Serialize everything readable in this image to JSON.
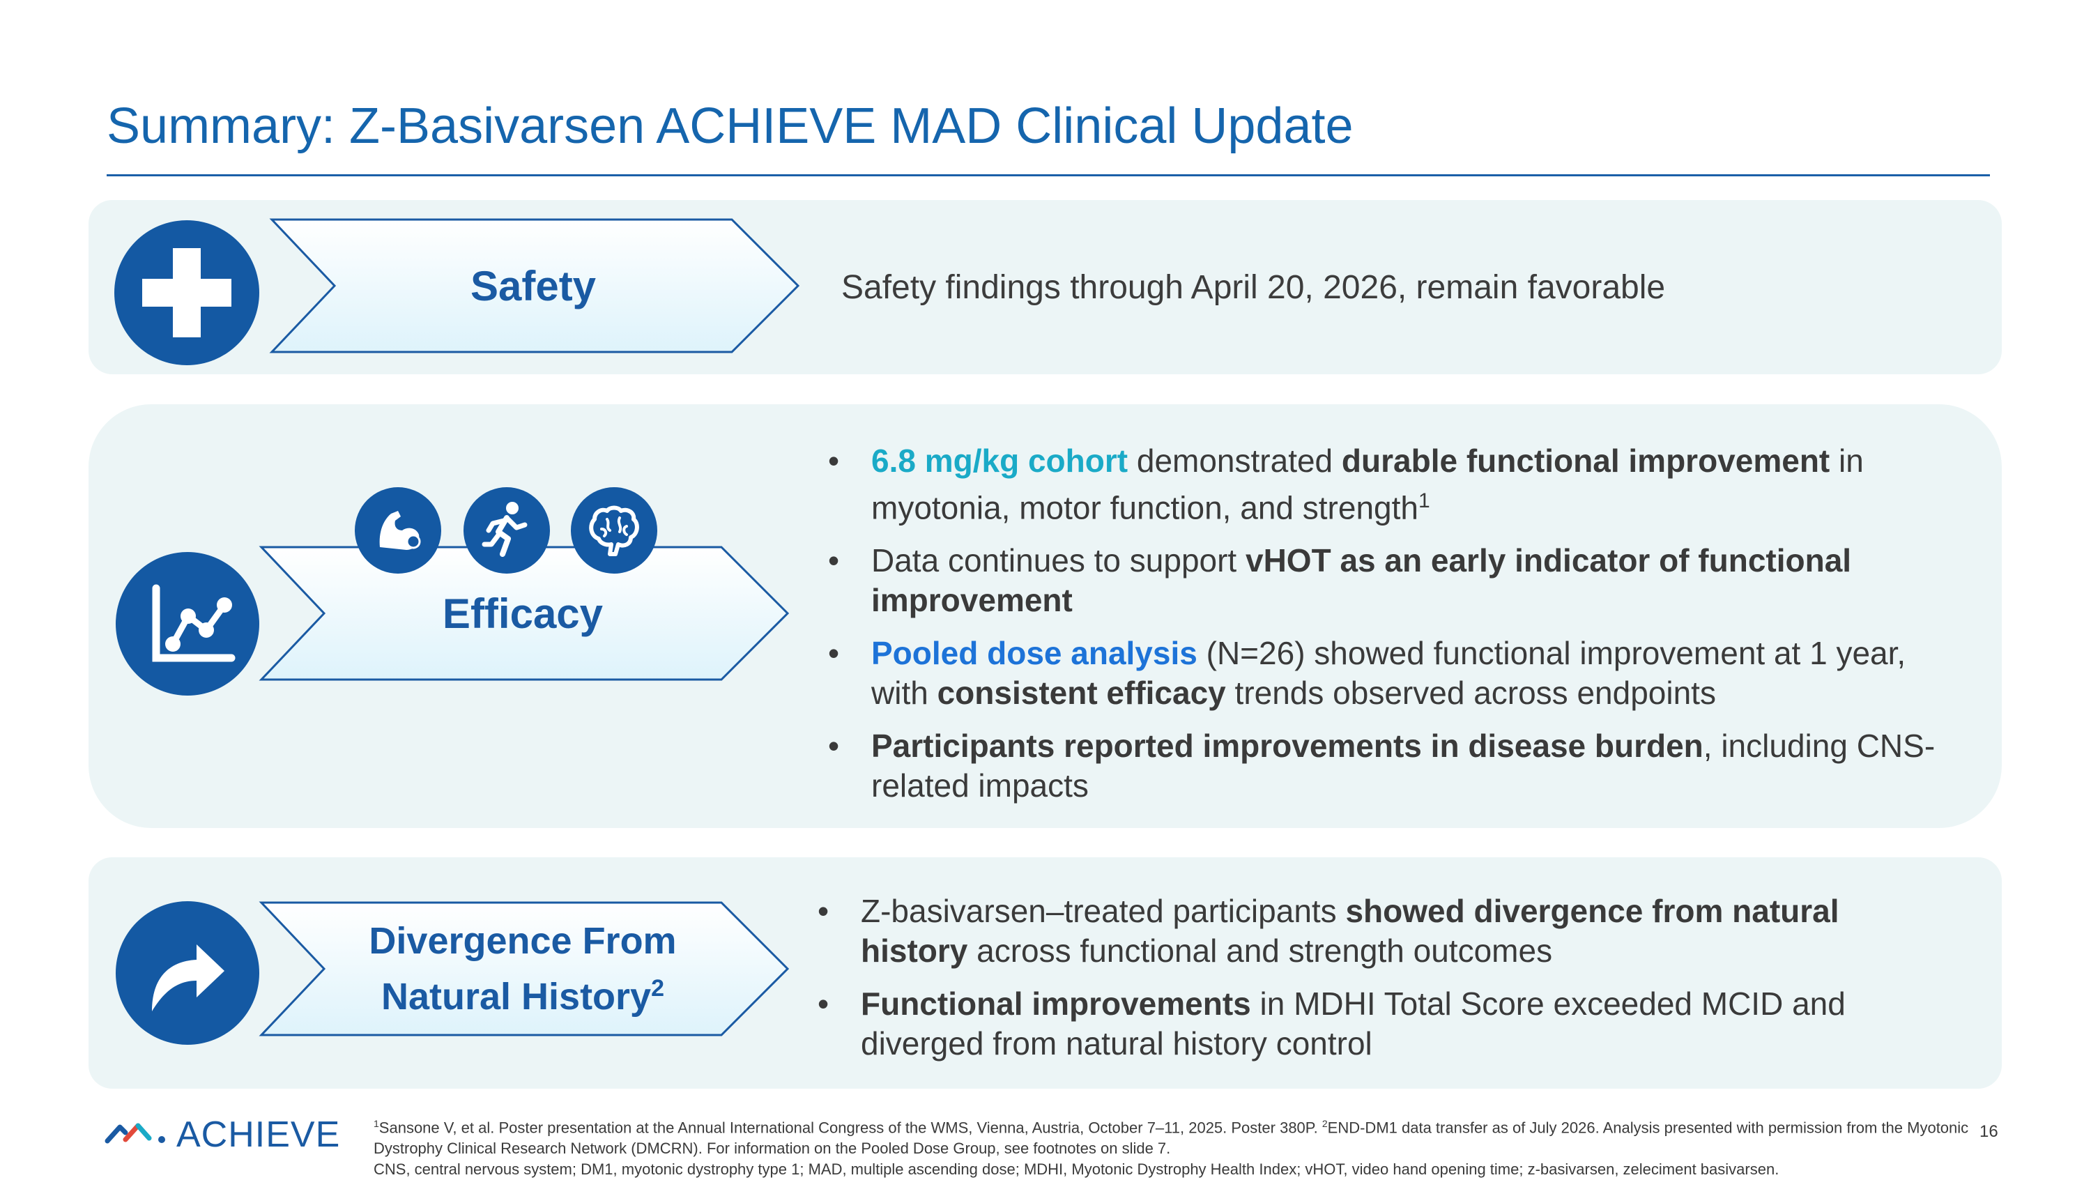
{
  "title": "Summary: Z-Basivarsen ACHIEVE MAD Clinical Update",
  "colors": {
    "primary_blue": "#1459a3",
    "title_blue": "#1565ad",
    "teal_accent": "#1aaac7",
    "link_blue": "#1d73d8",
    "panel_bg": "#ecf5f6"
  },
  "safety": {
    "label": "Safety",
    "icon": "medical-cross-icon",
    "text": "Safety findings through April 20, 2026, remain favorable"
  },
  "efficacy": {
    "label": "Efficacy",
    "icon": "chart-line-icon",
    "sub_icons": [
      "muscle-arm-icon",
      "running-person-icon",
      "brain-icon"
    ],
    "bullets": [
      {
        "s1": "6.8 mg/kg cohort",
        "s2": " demonstrated ",
        "s3": "durable functional improvement",
        "s4": " in myotonia, motor function, and strength",
        "sup": "1"
      },
      {
        "s1": "Data continues to support ",
        "s2": "vHOT as an early indicator of functional improvement"
      },
      {
        "s1": "Pooled dose analysis",
        "s2": " (N=26) showed functional improvement at 1 year, with ",
        "s3": "consistent efficacy",
        "s4": " trends observed across endpoints"
      },
      {
        "s1": "Participants reported improvements in disease burden",
        "s2": ", including CNS-related impacts"
      }
    ]
  },
  "divergence": {
    "label_line1": "Divergence From",
    "label_line2": "Natural History",
    "label_sup": "2",
    "icon": "share-arrow-icon",
    "bullets": [
      {
        "s1": "Z-basivarsen–treated participants ",
        "s2": "showed divergence from natural history",
        "s3": " across functional and strength outcomes"
      },
      {
        "s1": "Functional improvements",
        "s2": " in MDHI Total Score exceeded MCID and diverged from natural history control"
      }
    ]
  },
  "footer": {
    "logo_text": "ACHIEVE",
    "page_number": "16",
    "footnote_sup1": "1",
    "footnote_a": "Sansone V, et al. Poster presentation at the Annual International Congress of the WMS, Vienna, Austria, October 7–11, 2025. Poster 380P. ",
    "footnote_sup2": "2",
    "footnote_b": "END-DM1 data transfer as of July 2026. Analysis presented with permission from the Myotonic Dystrophy Clinical Research Network (DMCRN). For information on the Pooled Dose Group, see footnotes on slide 7.",
    "footnote_c": "CNS, central nervous system; DM1, myotonic dystrophy type 1; MAD, multiple ascending dose; MDHI, Myotonic Dystrophy Health Index; vHOT, video hand opening time; z-basivarsen, zeleciment basivarsen."
  }
}
